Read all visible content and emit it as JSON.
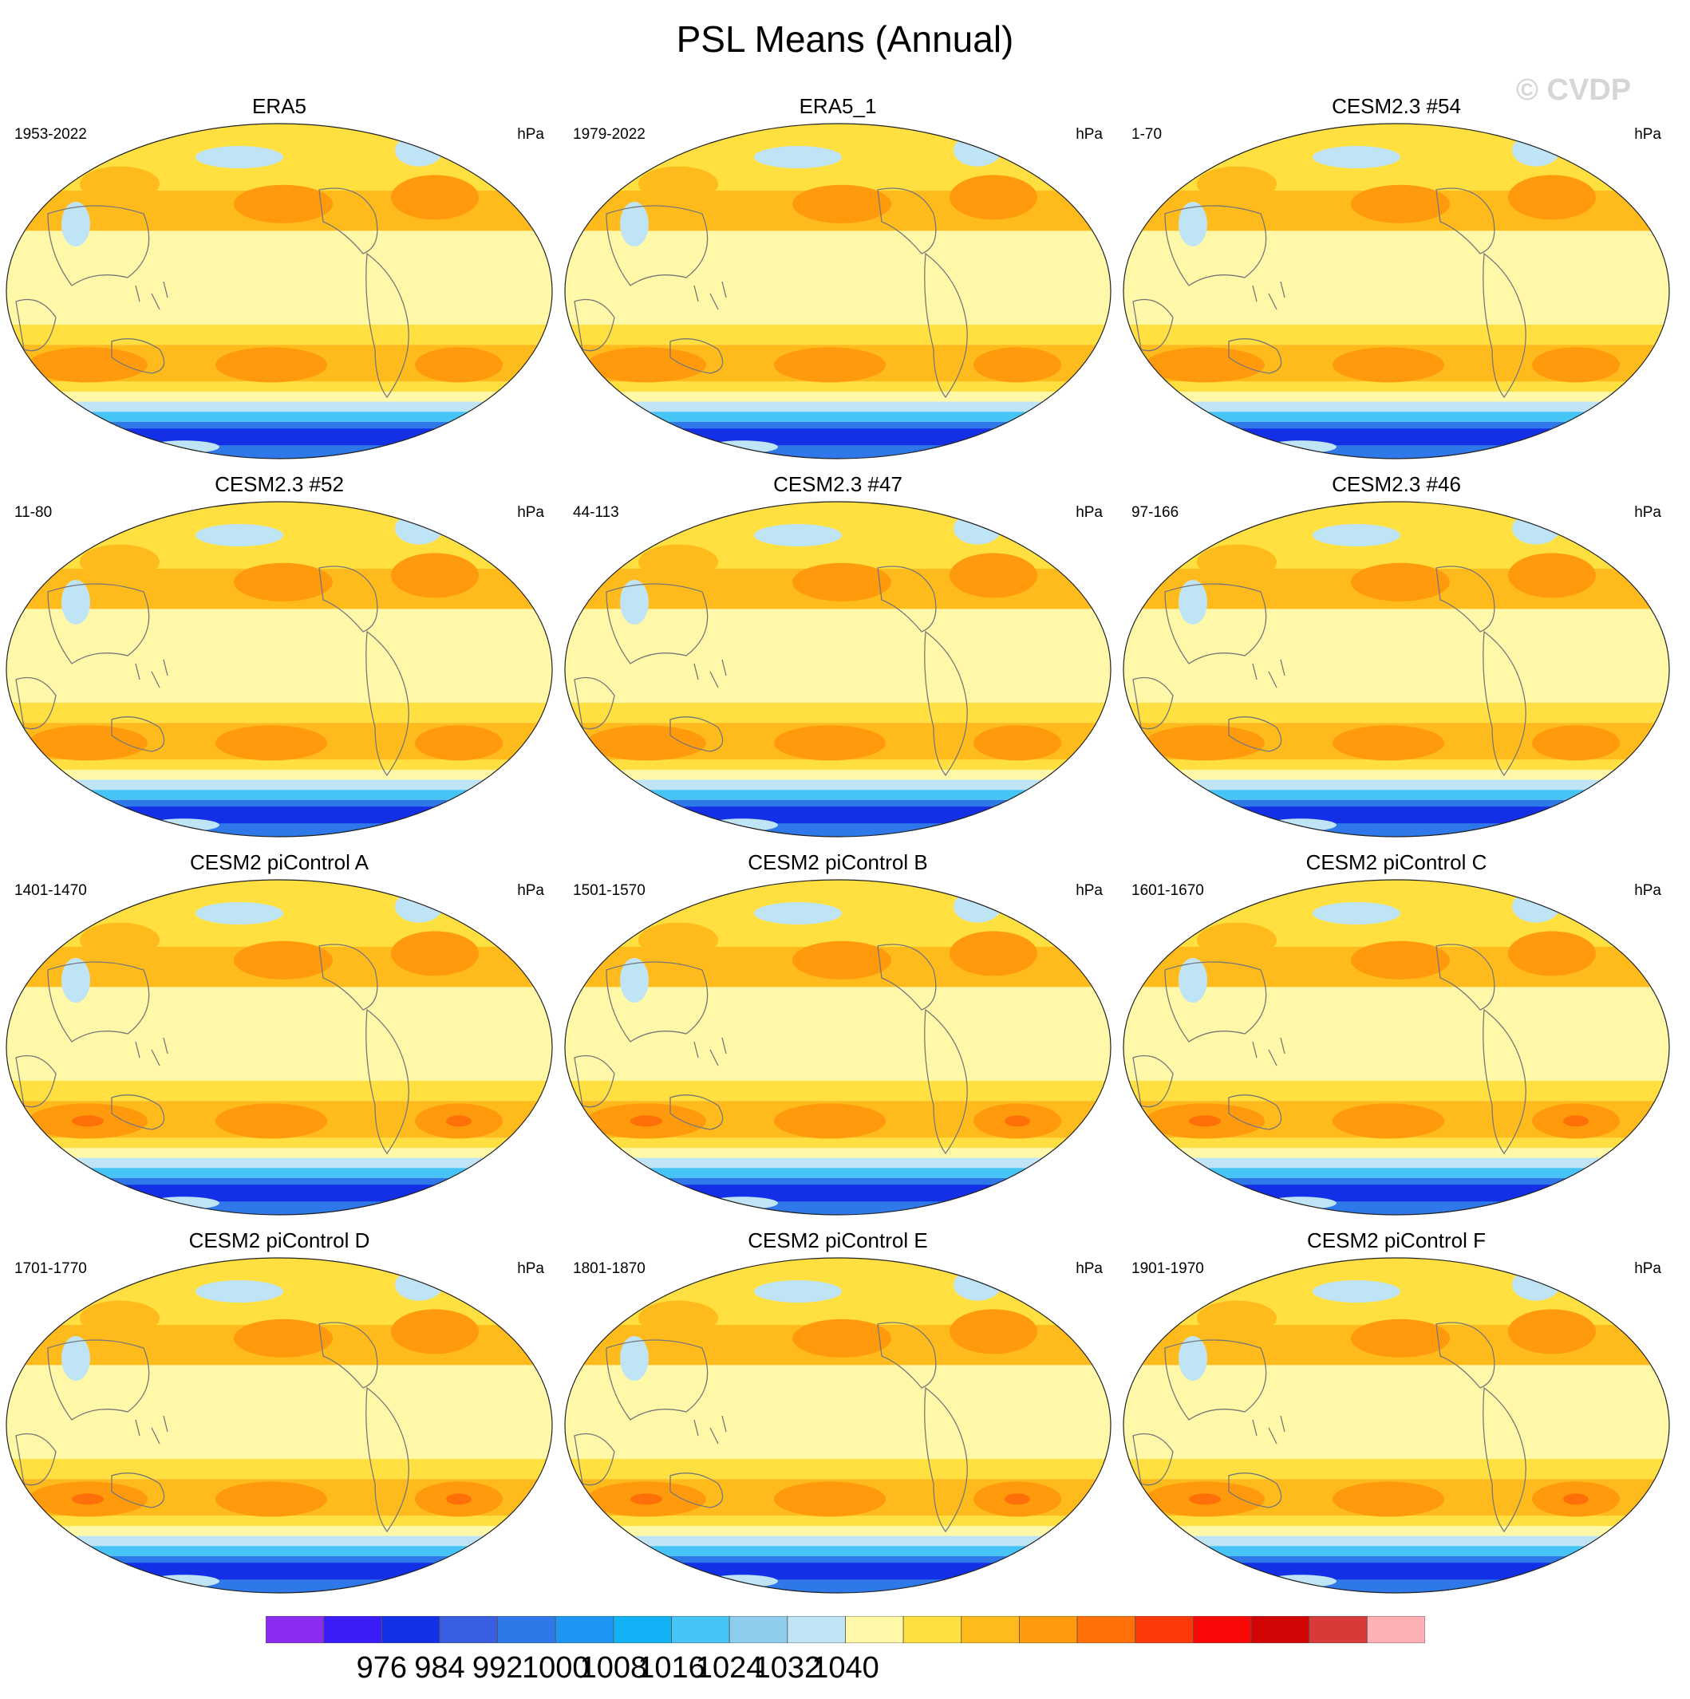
{
  "title": "PSL Means (Annual)",
  "watermark": "© CVDP",
  "panels": [
    {
      "title": "ERA5",
      "period": "1953-2022",
      "units": "hPa"
    },
    {
      "title": "ERA5_1",
      "period": "1979-2022",
      "units": "hPa"
    },
    {
      "title": "CESM2.3 #54",
      "period": "1-70",
      "units": "hPa"
    },
    {
      "title": "CESM2.3 #52",
      "period": "11-80",
      "units": "hPa"
    },
    {
      "title": "CESM2.3 #47",
      "period": "44-113",
      "units": "hPa"
    },
    {
      "title": "CESM2.3 #46",
      "period": "97-166",
      "units": "hPa"
    },
    {
      "title": "CESM2 piControl A",
      "period": "1401-1470",
      "units": "hPa"
    },
    {
      "title": "CESM2 piControl B",
      "period": "1501-1570",
      "units": "hPa"
    },
    {
      "title": "CESM2 piControl C",
      "period": "1601-1670",
      "units": "hPa"
    },
    {
      "title": "CESM2 piControl D",
      "period": "1701-1770",
      "units": "hPa"
    },
    {
      "title": "CESM2 piControl E",
      "period": "1801-1870",
      "units": "hPa"
    },
    {
      "title": "CESM2 piControl F",
      "period": "1901-1970",
      "units": "hPa"
    }
  ],
  "colorbar": {
    "colors": [
      "#8a2cf0",
      "#3a1cf8",
      "#1430e6",
      "#3a5ee2",
      "#2f78ea",
      "#1f96f4",
      "#12b2f6",
      "#46c4f6",
      "#8ecdec",
      "#bfe4f6",
      "#fff8a8",
      "#ffe040",
      "#ffbb1c",
      "#ff9a0c",
      "#ff7008",
      "#ff3808",
      "#fa0808",
      "#d20404",
      "#d83a3a",
      "#ffb0b4"
    ],
    "labels": [
      "976",
      "984",
      "992",
      "1000",
      "1008",
      "1016",
      "1024",
      "1032",
      "1040"
    ]
  },
  "map_colors": {
    "deep_low": "#1430e6",
    "low": "#2f78ea",
    "mid_low": "#46c4f6",
    "light_low": "#bfe4f6",
    "pale": "#fff8a8",
    "yellow": "#ffe040",
    "orange_light": "#ffbb1c",
    "orange": "#ff9a0c",
    "high": "#ff7008",
    "coast": "#777777"
  }
}
